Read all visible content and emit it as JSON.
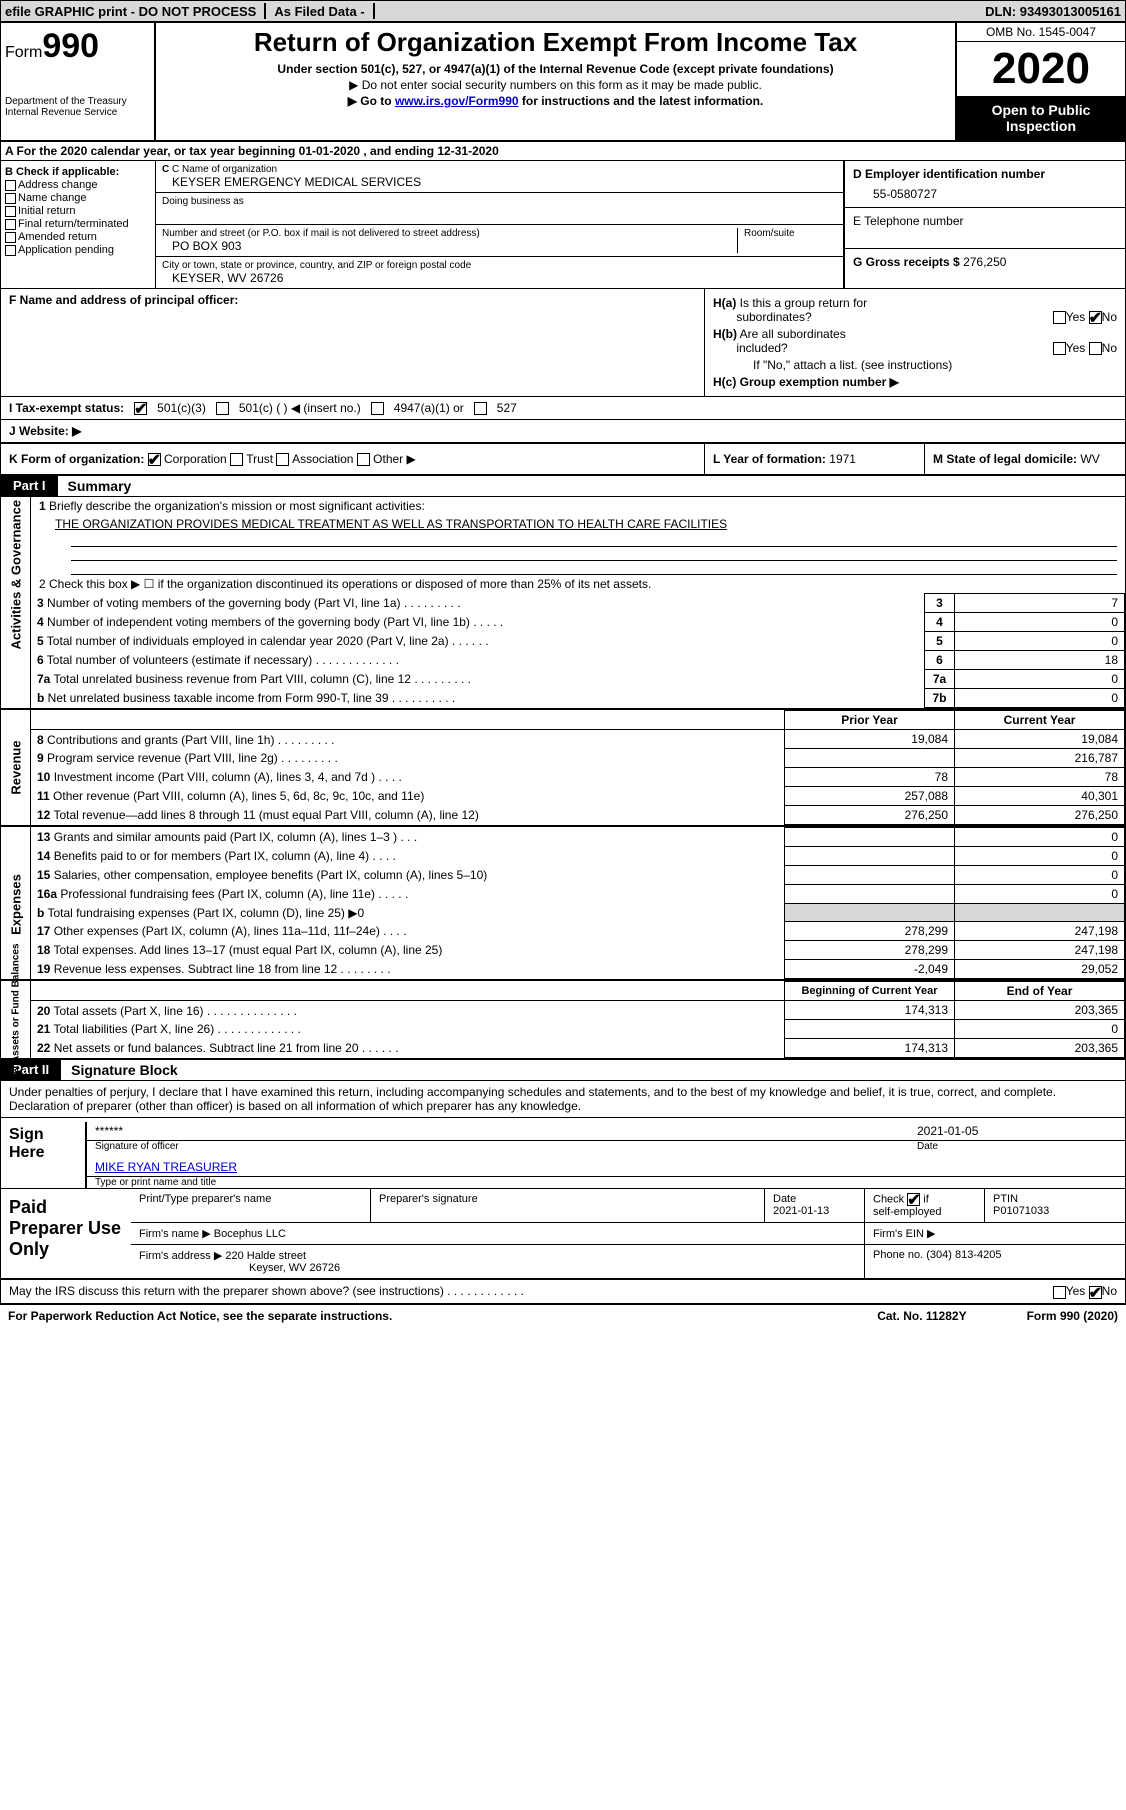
{
  "topbar": {
    "efile": "efile GRAPHIC print - DO NOT PROCESS",
    "asfiled": "As Filed Data -",
    "dln_label": "DLN:",
    "dln": "93493013005161"
  },
  "header": {
    "form_prefix": "Form",
    "form_num": "990",
    "dept1": "Department of the Treasury",
    "dept2": "Internal Revenue Service",
    "title": "Return of Organization Exempt From Income Tax",
    "subtitle": "Under section 501(c), 527, or 4947(a)(1) of the Internal Revenue Code (except private foundations)",
    "note1": "▶ Do not enter social security numbers on this form as it may be made public.",
    "note2_pre": "▶ Go to ",
    "note2_link": "www.irs.gov/Form990",
    "note2_post": " for instructions and the latest information.",
    "omb": "OMB No. 1545-0047",
    "year": "2020",
    "inspect": "Open to Public Inspection"
  },
  "rowA": "A  For the 2020 calendar year, or tax year beginning 01-01-2020  , and ending 12-31-2020",
  "B": {
    "label": "B Check if applicable:",
    "items": [
      "Address change",
      "Name change",
      "Initial return",
      "Final return/terminated",
      "Amended return",
      "Application pending"
    ]
  },
  "C": {
    "name_lbl": "C Name of organization",
    "name": "KEYSER EMERGENCY MEDICAL SERVICES",
    "dba_lbl": "Doing business as",
    "street_lbl": "Number and street (or P.O. box if mail is not delivered to street address)",
    "room_lbl": "Room/suite",
    "street": "PO BOX 903",
    "city_lbl": "City or town, state or province, country, and ZIP or foreign postal code",
    "city": "KEYSER, WV  26726"
  },
  "D": {
    "lbl": "D Employer identification number",
    "val": "55-0580727"
  },
  "E": {
    "lbl": "E Telephone number"
  },
  "G": {
    "lbl": "G Gross receipts $",
    "val": "276,250"
  },
  "F": {
    "lbl": "F  Name and address of principal officer:"
  },
  "H": {
    "a": "H(a)  Is this a group return for subordinates?",
    "b": "H(b)  Are all subordinates included?",
    "bnote": "If \"No,\" attach a list. (see instructions)",
    "c": "H(c)  Group exemption number ▶",
    "yes": "Yes",
    "no": "No"
  },
  "I": {
    "lbl": "I  Tax-exempt status:",
    "opts": [
      "501(c)(3)",
      "501(c) (   ) ◀ (insert no.)",
      "4947(a)(1) or",
      "527"
    ]
  },
  "J": {
    "lbl": "J  Website: ▶"
  },
  "K": {
    "lbl": "K Form of organization:",
    "opts": [
      "Corporation",
      "Trust",
      "Association",
      "Other ▶"
    ]
  },
  "L": {
    "lbl": "L Year of formation:",
    "val": "1971"
  },
  "M": {
    "lbl": "M State of legal domicile:",
    "val": "WV"
  },
  "partI": {
    "num": "Part I",
    "title": "Summary"
  },
  "summary": {
    "vtabs": [
      "Activities & Governance",
      "Revenue",
      "Expenses",
      "Net Assets or Fund Balances"
    ],
    "l1": "1 Briefly describe the organization's mission or most significant activities:",
    "l1val": "THE ORGANIZATION PROVIDES MEDICAL TREATMENT AS WELL AS TRANSPORTATION TO HEALTH CARE FACILITIES",
    "l2": "2  Check this box ▶ ☐ if the organization discontinued its operations or disposed of more than 25% of its net assets.",
    "rows37": [
      {
        "n": "3",
        "t": "Number of voting members of the governing body (Part VI, line 1a)  .    .    .    .    .    .    .    .    .",
        "c": "3",
        "v": "7"
      },
      {
        "n": "4",
        "t": "Number of independent voting members of the governing body (Part VI, line 1b)  .    .    .    .    .",
        "c": "4",
        "v": "0"
      },
      {
        "n": "5",
        "t": "Total number of individuals employed in calendar year 2020 (Part V, line 2a)  .    .    .    .    .    .",
        "c": "5",
        "v": "0"
      },
      {
        "n": "6",
        "t": "Total number of volunteers (estimate if necessary)  .    .    .    .    .    .    .    .    .    .    .    .    .",
        "c": "6",
        "v": "18"
      },
      {
        "n": "7a",
        "t": "Total unrelated business revenue from Part VIII, column (C), line 12  .    .    .    .    .    .    .    .    .",
        "c": "7a",
        "v": "0"
      },
      {
        "n": "b",
        "t": "Net unrelated business taxable income from Form 990-T, line 39  .    .    .    .    .    .    .    .    .    .",
        "c": "7b",
        "v": "0"
      }
    ],
    "hdr_prior": "Prior Year",
    "hdr_curr": "Current Year",
    "rev": [
      {
        "n": "8",
        "t": "Contributions and grants (Part VIII, line 1h)  .    .    .    .    .    .    .    .    .",
        "p": "19,084",
        "c": "19,084"
      },
      {
        "n": "9",
        "t": "Program service revenue (Part VIII, line 2g)  .    .    .    .    .    .    .    .    .",
        "p": "",
        "c": "216,787"
      },
      {
        "n": "10",
        "t": "Investment income (Part VIII, column (A), lines 3, 4, and 7d )  .    .    .    .",
        "p": "78",
        "c": "78"
      },
      {
        "n": "11",
        "t": "Other revenue (Part VIII, column (A), lines 5, 6d, 8c, 9c, 10c, and 11e)",
        "p": "257,088",
        "c": "40,301"
      },
      {
        "n": "12",
        "t": "Total revenue—add lines 8 through 11 (must equal Part VIII, column (A), line 12)",
        "p": "276,250",
        "c": "276,250"
      }
    ],
    "exp": [
      {
        "n": "13",
        "t": "Grants and similar amounts paid (Part IX, column (A), lines 1–3 )  .   .   .",
        "p": "",
        "c": "0"
      },
      {
        "n": "14",
        "t": "Benefits paid to or for members (Part IX, column (A), line 4)  .    .    .    .",
        "p": "",
        "c": "0"
      },
      {
        "n": "15",
        "t": "Salaries, other compensation, employee benefits (Part IX, column (A), lines 5–10)",
        "p": "",
        "c": "0"
      },
      {
        "n": "16a",
        "t": "Professional fundraising fees (Part IX, column (A), line 11e)  .    .    .    .    .",
        "p": "",
        "c": "0"
      },
      {
        "n": "b",
        "t": "Total fundraising expenses (Part IX, column (D), line 25) ▶0",
        "p": "shade",
        "c": "shade"
      },
      {
        "n": "17",
        "t": "Other expenses (Part IX, column (A), lines 11a–11d, 11f–24e)  .    .    .    .",
        "p": "278,299",
        "c": "247,198"
      },
      {
        "n": "18",
        "t": "Total expenses. Add lines 13–17 (must equal Part IX, column (A), line 25)",
        "p": "278,299",
        "c": "247,198"
      },
      {
        "n": "19",
        "t": "Revenue less expenses. Subtract line 18 from line 12 .    .    .    .    .    .    .    .",
        "p": "-2,049",
        "c": "29,052"
      }
    ],
    "hdr_beg": "Beginning of Current Year",
    "hdr_end": "End of Year",
    "net": [
      {
        "n": "20",
        "t": "Total assets (Part X, line 16)  .    .    .    .    .    .    .    .    .    .    .    .    .    .",
        "p": "174,313",
        "c": "203,365"
      },
      {
        "n": "21",
        "t": "Total liabilities (Part X, line 26)  .    .    .    .     .    .    .    .    .    .    .    .    .",
        "p": "",
        "c": "0"
      },
      {
        "n": "22",
        "t": "Net assets or fund balances. Subtract line 21 from line 20 .    .    .    .    .    .",
        "p": "174,313",
        "c": "203,365"
      }
    ]
  },
  "partII": {
    "num": "Part II",
    "title": "Signature Block"
  },
  "sig": {
    "penalty": "Under penalties of perjury, I declare that I have examined this return, including accompanying schedules and statements, and to the best of my knowledge and belief, it is true, correct, and complete. Declaration of preparer (other than officer) is based on all information of which preparer has any knowledge.",
    "sign_here": "Sign Here",
    "stars": "******",
    "sig_lbl": "Signature of officer",
    "date": "2021-01-05",
    "date_lbl": "Date",
    "name": "MIKE RYAN TREASURER",
    "name_lbl": "Type or print name and title"
  },
  "prep": {
    "title": "Paid Preparer Use Only",
    "h1": "Print/Type preparer's name",
    "h2": "Preparer's signature",
    "h3": "Date",
    "h3v": "2021-01-13",
    "h4": "Check ☑ if self-employed",
    "h5": "PTIN",
    "h5v": "P01071033",
    "firm_lbl": "Firm's name    ▶",
    "firm": "Bocephus LLC",
    "ein_lbl": "Firm's EIN ▶",
    "addr_lbl": "Firm's address ▶",
    "addr1": "220 Halde street",
    "addr2": "Keyser, WV  26726",
    "phone_lbl": "Phone no.",
    "phone": "(304) 813-4205"
  },
  "footer": {
    "q": "May the IRS discuss this return with the preparer shown above? (see instructions)  .    .    .    .    .    .    .    .    .    .    .    .",
    "yes": "Yes",
    "no": "No",
    "paperwork": "For Paperwork Reduction Act Notice, see the separate instructions.",
    "cat": "Cat. No. 11282Y",
    "form": "Form 990 (2020)"
  }
}
